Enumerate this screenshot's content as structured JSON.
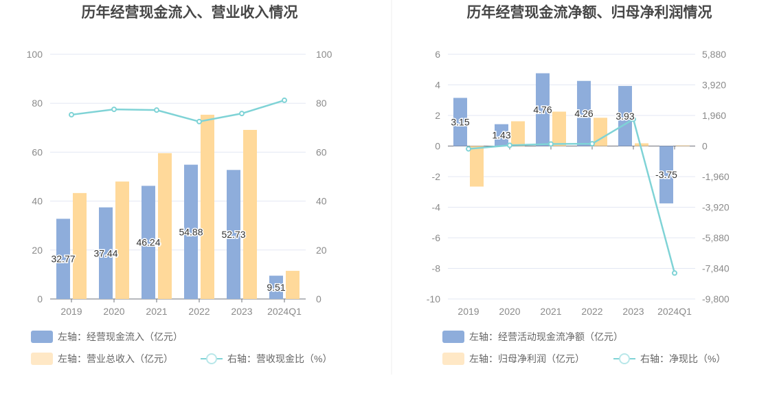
{
  "colors": {
    "bar1": "#8eaddb",
    "bar2": "#ffd99a",
    "bar2_legend": "#ffe8c6",
    "line": "#7fd3d6",
    "grid": "#e3e7f3",
    "axis": "#6e7079"
  },
  "chart_data": [
    {
      "type": "bar+line",
      "title": "历年经营现金流入、营业收入情况",
      "categories": [
        "2019",
        "2020",
        "2021",
        "2022",
        "2023",
        "2024Q1"
      ],
      "left_axis": {
        "min": 0,
        "max": 100,
        "ticks": [
          "0",
          "20",
          "40",
          "60",
          "80",
          "100"
        ]
      },
      "right_axis": {
        "min": 0,
        "max": 100,
        "ticks": [
          "0",
          "20",
          "40",
          "60",
          "80",
          "100"
        ]
      },
      "grid": true,
      "legend_position": "bottom",
      "series": [
        {
          "name": "左轴：经营现金流入（亿元）",
          "type": "bar",
          "axis": "left",
          "values": [
            32.77,
            37.44,
            46.24,
            54.88,
            52.73,
            9.51
          ],
          "labels": [
            "32.77",
            "37.44",
            "46.24",
            "54.88",
            "52.73",
            "9.51"
          ]
        },
        {
          "name": "左轴：营业总收入（亿元）",
          "type": "bar",
          "axis": "left",
          "values": [
            43.3,
            48.0,
            59.6,
            75.3,
            69.1,
            11.5
          ]
        },
        {
          "name": "右轴：营收现金比（%）",
          "type": "line",
          "axis": "right",
          "values": [
            75.3,
            77.5,
            77.2,
            72.5,
            75.8,
            81.2
          ]
        }
      ]
    },
    {
      "type": "bar+line",
      "title": "历年经营现金流净额、归母净利润情况",
      "categories": [
        "2019",
        "2020",
        "2021",
        "2022",
        "2023",
        "2024Q1"
      ],
      "left_axis": {
        "min": -10,
        "max": 6,
        "ticks": [
          "-10",
          "-8",
          "-6",
          "-4",
          "-2",
          "0",
          "2",
          "4",
          "6"
        ]
      },
      "right_axis": {
        "min": -9800,
        "max": 5880,
        "ticks": [
          "-9,800",
          "-7,840",
          "-5,880",
          "-3,920",
          "-1,960",
          "0",
          "1,960",
          "3,920",
          "5,880"
        ]
      },
      "grid": true,
      "legend_position": "bottom",
      "series": [
        {
          "name": "左轴：经营活动现金流净额（亿元）",
          "type": "bar",
          "axis": "left",
          "values": [
            3.15,
            1.43,
            4.76,
            4.26,
            3.93,
            -3.75
          ],
          "labels": [
            "3.15",
            "1.43",
            "4.76",
            "4.26",
            "3.93",
            "-3.75"
          ]
        },
        {
          "name": "左轴：归母净利润（亿元）",
          "type": "bar",
          "axis": "left",
          "values": [
            -2.65,
            1.62,
            2.25,
            1.85,
            0.18,
            0.04
          ]
        },
        {
          "name": "右轴：净现比（%）",
          "type": "line",
          "axis": "right",
          "values": [
            -180,
            50,
            130,
            150,
            1720,
            -8140
          ]
        }
      ]
    }
  ]
}
